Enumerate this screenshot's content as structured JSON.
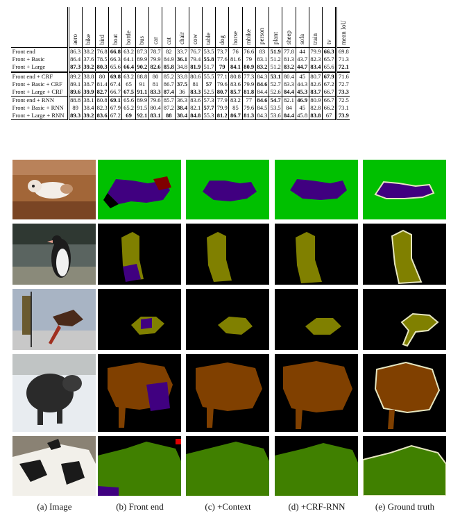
{
  "table": {
    "columns": [
      "aero",
      "bike",
      "bird",
      "boat",
      "bottle",
      "bus",
      "car",
      "cat",
      "chair",
      "cow",
      "table",
      "dog",
      "horse",
      "mbike",
      "person",
      "plant",
      "sheep",
      "sofa",
      "train",
      "tv",
      "mean IoU"
    ],
    "rows": [
      {
        "label": "Front end",
        "values": [
          "86.3",
          "38.2",
          "76.8",
          "66.8",
          "63.2",
          "87.3",
          "78.7",
          "82",
          "33.7",
          "76.7",
          "53.5",
          "73.7",
          "76",
          "76.6",
          "83",
          "51.9",
          "77.8",
          "44",
          "79.9",
          "66.3",
          "69.8"
        ],
        "bold": [
          3,
          15,
          19
        ]
      },
      {
        "label": "Front + Basic",
        "values": [
          "86.4",
          "37.6",
          "78.5",
          "66.3",
          "64.1",
          "89.9",
          "79.9",
          "84.9",
          "36.1",
          "79.4",
          "55.8",
          "77.6",
          "81.6",
          "79",
          "83.1",
          "51.2",
          "81.3",
          "43.7",
          "82.3",
          "65.7",
          "71.3"
        ],
        "bold": [
          8,
          10
        ]
      },
      {
        "label": "Front + Large",
        "values": [
          "87.3",
          "39.2",
          "80.3",
          "65.6",
          "66.4",
          "90.2",
          "82.6",
          "85.8",
          "34.8",
          "81.9",
          "51.7",
          "79",
          "84.1",
          "80.9",
          "83.2",
          "51.2",
          "83.2",
          "44.7",
          "83.4",
          "65.6",
          "72.1"
        ],
        "bold": [
          0,
          1,
          2,
          4,
          5,
          6,
          7,
          9,
          11,
          12,
          13,
          14,
          16,
          17,
          18,
          20
        ]
      },
      {
        "label": "Front end + CRF",
        "values": [
          "89.2",
          "38.8",
          "80",
          "69.8",
          "63.2",
          "88.8",
          "80",
          "85.2",
          "33.8",
          "80.6",
          "55.5",
          "77.1",
          "80.8",
          "77.3",
          "84.3",
          "53.1",
          "80.4",
          "45",
          "80.7",
          "67.9",
          "71.6"
        ],
        "bold": [
          3,
          15,
          19
        ]
      },
      {
        "label": "Front + Basic + CRF",
        "values": [
          "89.1",
          "38.7",
          "81.4",
          "67.4",
          "65",
          "91",
          "81",
          "86.7",
          "37.5",
          "81",
          "57",
          "79.6",
          "83.6",
          "79.9",
          "84.6",
          "52.7",
          "83.3",
          "44.3",
          "82.6",
          "67.2",
          "72.7"
        ],
        "bold": [
          8,
          10,
          14
        ]
      },
      {
        "label": "Front + Large + CRF",
        "values": [
          "89.6",
          "39.9",
          "82.7",
          "66.7",
          "67.5",
          "91.1",
          "83.3",
          "87.4",
          "36",
          "83.3",
          "52.5",
          "80.7",
          "85.7",
          "81.8",
          "84.4",
          "52.6",
          "84.4",
          "45.3",
          "83.7",
          "66.7",
          "73.3"
        ],
        "bold": [
          0,
          1,
          2,
          4,
          5,
          6,
          7,
          9,
          11,
          12,
          13,
          16,
          17,
          18,
          20
        ]
      },
      {
        "label": "Front end + RNN",
        "values": [
          "88.8",
          "38.1",
          "80.8",
          "69.1",
          "65.6",
          "89.9",
          "79.6",
          "85.7",
          "36.3",
          "83.6",
          "57.3",
          "77.9",
          "83.2",
          "77",
          "84.6",
          "54.7",
          "82.1",
          "46.9",
          "80.9",
          "66.7",
          "72.5"
        ],
        "bold": [
          3,
          14,
          15,
          17
        ]
      },
      {
        "label": "Front + Basic + RNN",
        "values": [
          "89",
          "38.4",
          "82.3",
          "67.9",
          "65.2",
          "91.5",
          "80.4",
          "87.2",
          "38.4",
          "82.1",
          "57.7",
          "79.9",
          "85",
          "79.6",
          "84.5",
          "53.5",
          "84",
          "45",
          "82.8",
          "66.2",
          "73.1"
        ],
        "bold": [
          8,
          10
        ]
      },
      {
        "label": "Front + Large + RNN",
        "values": [
          "89.3",
          "39.2",
          "83.6",
          "67.2",
          "69",
          "92.1",
          "83.1",
          "88",
          "38.4",
          "84.8",
          "55.3",
          "81.2",
          "86.7",
          "81.3",
          "84.3",
          "53.6",
          "84.4",
          "45.8",
          "83.8",
          "67",
          "73.9"
        ],
        "bold": [
          0,
          1,
          2,
          4,
          5,
          6,
          7,
          8,
          9,
          11,
          12,
          13,
          16,
          18,
          20
        ]
      }
    ]
  },
  "captions": [
    "(a) Image",
    "(b) Front end",
    "(c) +Context",
    "(d) +CRF-RNN",
    "(e) Ground truth"
  ],
  "colors": {
    "background": "#00c000",
    "dog": "#400080",
    "chair": "#800000",
    "bird": "#808000",
    "sheep": "#804000",
    "cow": "#408000",
    "outline": "#e6e6c0"
  }
}
